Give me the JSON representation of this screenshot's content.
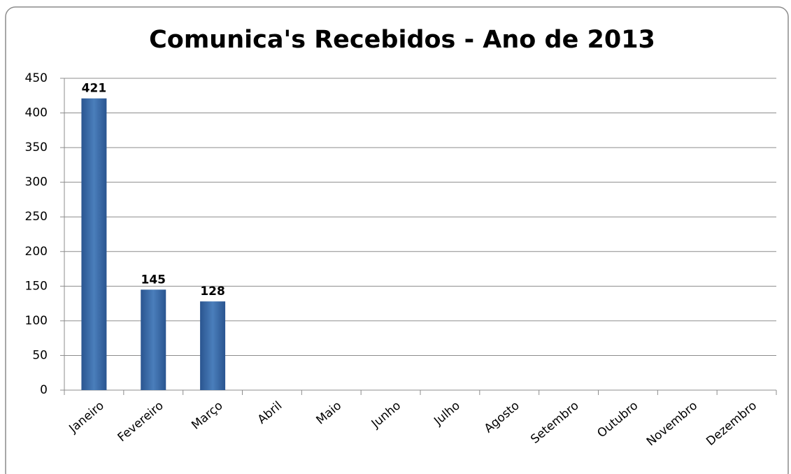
{
  "chart_data": {
    "type": "bar",
    "title": "Comunica's Recebidos - Ano de 2013",
    "categories": [
      "Janeiro",
      "Fevereiro",
      "Março",
      "Abril",
      "Maio",
      "Junho",
      "Julho",
      "Agosto",
      "Setembro",
      "Outubro",
      "Novembro",
      "Dezembro"
    ],
    "values": [
      421,
      145,
      128,
      null,
      null,
      null,
      null,
      null,
      null,
      null,
      null,
      null
    ],
    "color": "#4a7ebb",
    "ylim": [
      0,
      450
    ],
    "yticks": [
      0,
      50,
      100,
      150,
      200,
      250,
      300,
      350,
      400,
      450
    ],
    "grid": true
  }
}
